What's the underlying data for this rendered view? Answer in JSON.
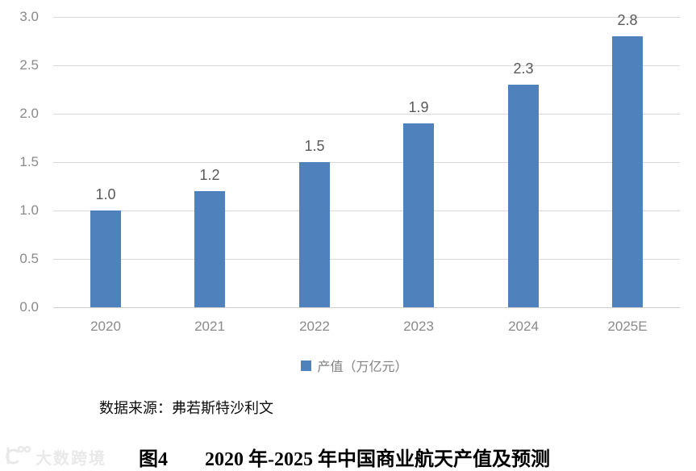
{
  "chart_data": {
    "type": "bar",
    "categories": [
      "2020",
      "2021",
      "2022",
      "2023",
      "2024",
      "2025E"
    ],
    "values": [
      1.0,
      1.2,
      1.5,
      1.9,
      2.3,
      2.8
    ],
    "value_labels": [
      "1.0",
      "1.2",
      "1.5",
      "1.9",
      "2.3",
      "2.8"
    ],
    "title": "",
    "xlabel": "",
    "ylabel": "",
    "ylim": [
      0.0,
      3.0
    ],
    "ytick_step": 0.5,
    "yticks_top_to_bottom": [
      "3.0",
      "2.5",
      "2.0",
      "1.5",
      "1.0",
      "0.5",
      "0.0"
    ],
    "grid": true,
    "legend_position": "bottom",
    "legend_entries": [
      "产值（万亿元）"
    ],
    "bar_color": "#4F81BD"
  },
  "legend": {
    "label": "产值（万亿元）"
  },
  "source_note": "数据来源：弗若斯特沙利文",
  "figure": {
    "label": "图4",
    "title": "2020 年-2025 年中国商业航天产值及预测"
  },
  "watermark": {
    "text": "大数跨境"
  },
  "colors": {
    "bar": "#4F81BD",
    "value_label": "#595959",
    "axis_label": "#8A8A8A",
    "gridline": "#D9D9D9",
    "source_text": "#0D0D0D",
    "title_text": "#000000",
    "watermark": "#E9E9E9"
  }
}
